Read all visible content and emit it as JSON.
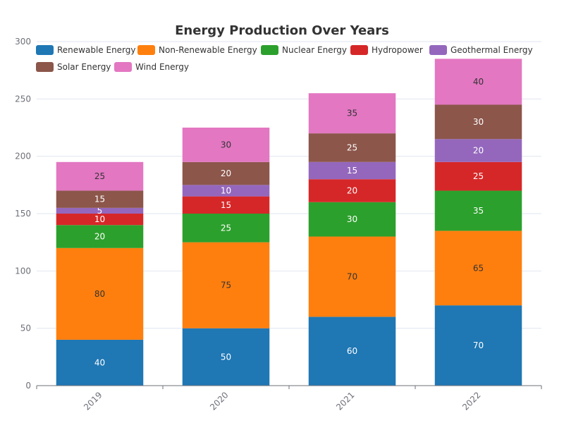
{
  "chart_data": {
    "type": "bar",
    "stacked": true,
    "title": "Energy Production Over Years",
    "xlabel": "",
    "ylabel": "",
    "categories": [
      "2019",
      "2020",
      "2021",
      "2022"
    ],
    "ylim": [
      0,
      300
    ],
    "yticks": [
      0,
      50,
      100,
      150,
      200,
      250,
      300
    ],
    "grid": true,
    "legend_position": "top",
    "series": [
      {
        "name": "Renewable Energy",
        "color": "#1f77b4",
        "label_color": "#ffffff",
        "values": [
          40,
          50,
          60,
          70
        ]
      },
      {
        "name": "Non-Renewable Energy",
        "color": "#ff7f0e",
        "label_color": "#333333",
        "values": [
          80,
          75,
          70,
          65
        ]
      },
      {
        "name": "Nuclear Energy",
        "color": "#2ca02c",
        "label_color": "#ffffff",
        "values": [
          20,
          25,
          30,
          35
        ]
      },
      {
        "name": "Hydropower",
        "color": "#d62728",
        "label_color": "#ffffff",
        "values": [
          10,
          15,
          20,
          25
        ]
      },
      {
        "name": "Geothermal Energy",
        "color": "#9467bd",
        "label_color": "#ffffff",
        "values": [
          5,
          10,
          15,
          20
        ]
      },
      {
        "name": "Solar Energy",
        "color": "#8c564b",
        "label_color": "#ffffff",
        "values": [
          15,
          20,
          25,
          30
        ]
      },
      {
        "name": "Wind Energy",
        "color": "#e377c2",
        "label_color": "#333333",
        "values": [
          25,
          30,
          35,
          40
        ]
      }
    ]
  }
}
